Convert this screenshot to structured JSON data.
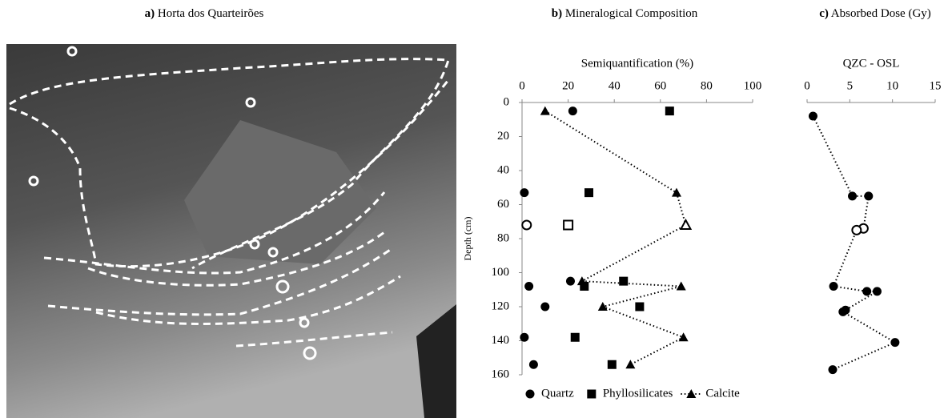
{
  "photo": {
    "panel_label": "a)",
    "title": "Horta dos Quarteirões"
  },
  "chart_data": [
    {
      "type": "scatter",
      "panel_label": "b)",
      "title": "Mineralogical Composition",
      "xlabel": "Semiquantification (%)",
      "ylabel": "Depth (cm)",
      "xlim": [
        0,
        100
      ],
      "xticks": [
        0,
        20,
        40,
        60,
        80,
        100
      ],
      "ylim": [
        0,
        160
      ],
      "yticks": [
        0,
        20,
        40,
        60,
        80,
        100,
        120,
        140,
        160
      ],
      "legend": "bottom",
      "series": [
        {
          "name": "Quartz",
          "marker": "circle",
          "color": "#000000",
          "x": [
            22,
            1,
            2,
            21,
            3,
            10,
            1,
            5
          ],
          "y": [
            5,
            53,
            72,
            105,
            108,
            120,
            138,
            154
          ],
          "hollow": [
            false,
            false,
            true,
            false,
            false,
            false,
            false,
            false
          ],
          "line": false
        },
        {
          "name": "Phyllosilicates",
          "marker": "square",
          "color": "#000000",
          "x": [
            64,
            29,
            20,
            44,
            27,
            51,
            23,
            39
          ],
          "y": [
            5,
            53,
            72,
            105,
            108,
            120,
            138,
            154
          ],
          "hollow": [
            false,
            false,
            true,
            false,
            false,
            false,
            false,
            false
          ],
          "line": false
        },
        {
          "name": "Calcite",
          "marker": "triangle",
          "color": "#000000",
          "x": [
            10,
            67,
            71,
            26,
            69,
            35,
            70,
            47
          ],
          "y": [
            5,
            53,
            72,
            105,
            108,
            120,
            138,
            154
          ],
          "hollow": [
            false,
            false,
            true,
            false,
            false,
            false,
            false,
            false
          ],
          "line": true
        }
      ]
    },
    {
      "type": "scatter",
      "panel_label": "c)",
      "title": "Absorbed Dose (Gy)",
      "xlabel": "QZC - OSL",
      "xlim": [
        0,
        15
      ],
      "xticks": [
        0,
        5,
        10,
        15
      ],
      "ylim": [
        0,
        160
      ],
      "series": [
        {
          "marker": "circle",
          "color": "#000000",
          "x": [
            0.7,
            5.3,
            7.2,
            6.6,
            5.8,
            3.1,
            7,
            8.2,
            4.5,
            4.2,
            10.3,
            3
          ],
          "y": [
            8,
            55,
            55,
            74,
            75,
            108,
            111,
            111,
            122,
            123,
            141,
            157
          ],
          "hollow": [
            false,
            false,
            false,
            true,
            true,
            false,
            false,
            false,
            false,
            false,
            false,
            false
          ],
          "line": true
        }
      ]
    }
  ]
}
